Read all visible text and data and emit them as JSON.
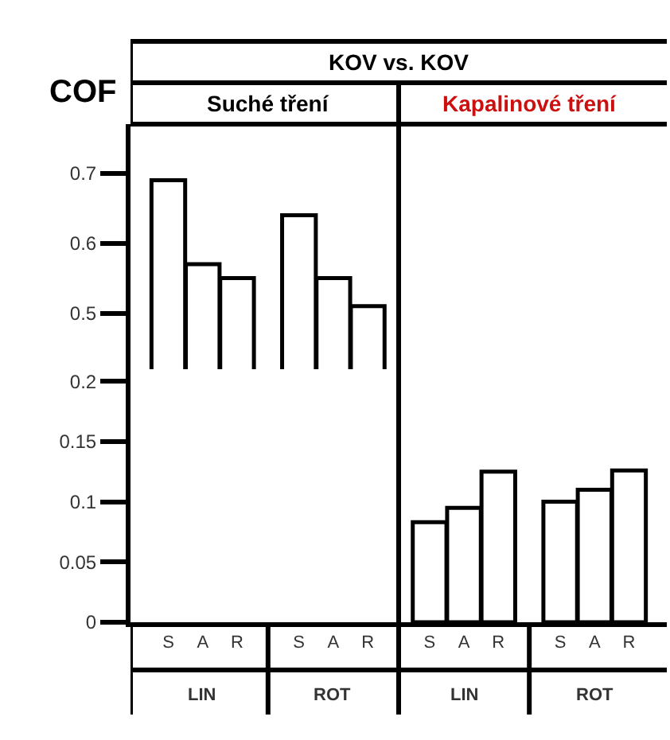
{
  "chart_data": [
    {
      "type": "bar",
      "title": "KOV vs. KOV",
      "ylabel": "COF",
      "series": [
        {
          "color": "#ffffff",
          "values": [
            0.69,
            0.57,
            0.55,
            0.64,
            0.55,
            0.51,
            null,
            null,
            null,
            null,
            null,
            null
          ]
        }
      ],
      "ylim": [
        0.42,
        0.77
      ],
      "yticks": [
        0.5,
        0.6,
        0.7
      ],
      "tick_labels": "y",
      "annotations": [
        "Suché tření",
        "Kapalinové tření"
      ],
      "grid": false
    },
    {
      "type": "bar",
      "categories": [
        "S",
        "A",
        "R",
        "S",
        "A",
        "R",
        "S",
        "A",
        "R",
        "S",
        "A",
        "R"
      ],
      "series": [
        {
          "color": "#ffffff",
          "values": [
            null,
            null,
            null,
            null,
            null,
            null,
            0.083,
            0.095,
            0.125,
            0.1,
            0.11,
            0.126
          ]
        }
      ],
      "ylim": [
        0,
        0.21
      ],
      "yticks": [
        0,
        0.05,
        0.1,
        0.15,
        0.2
      ],
      "annotations": [
        "LIN",
        "ROT",
        "LIN",
        "ROT"
      ],
      "grid": false
    }
  ]
}
